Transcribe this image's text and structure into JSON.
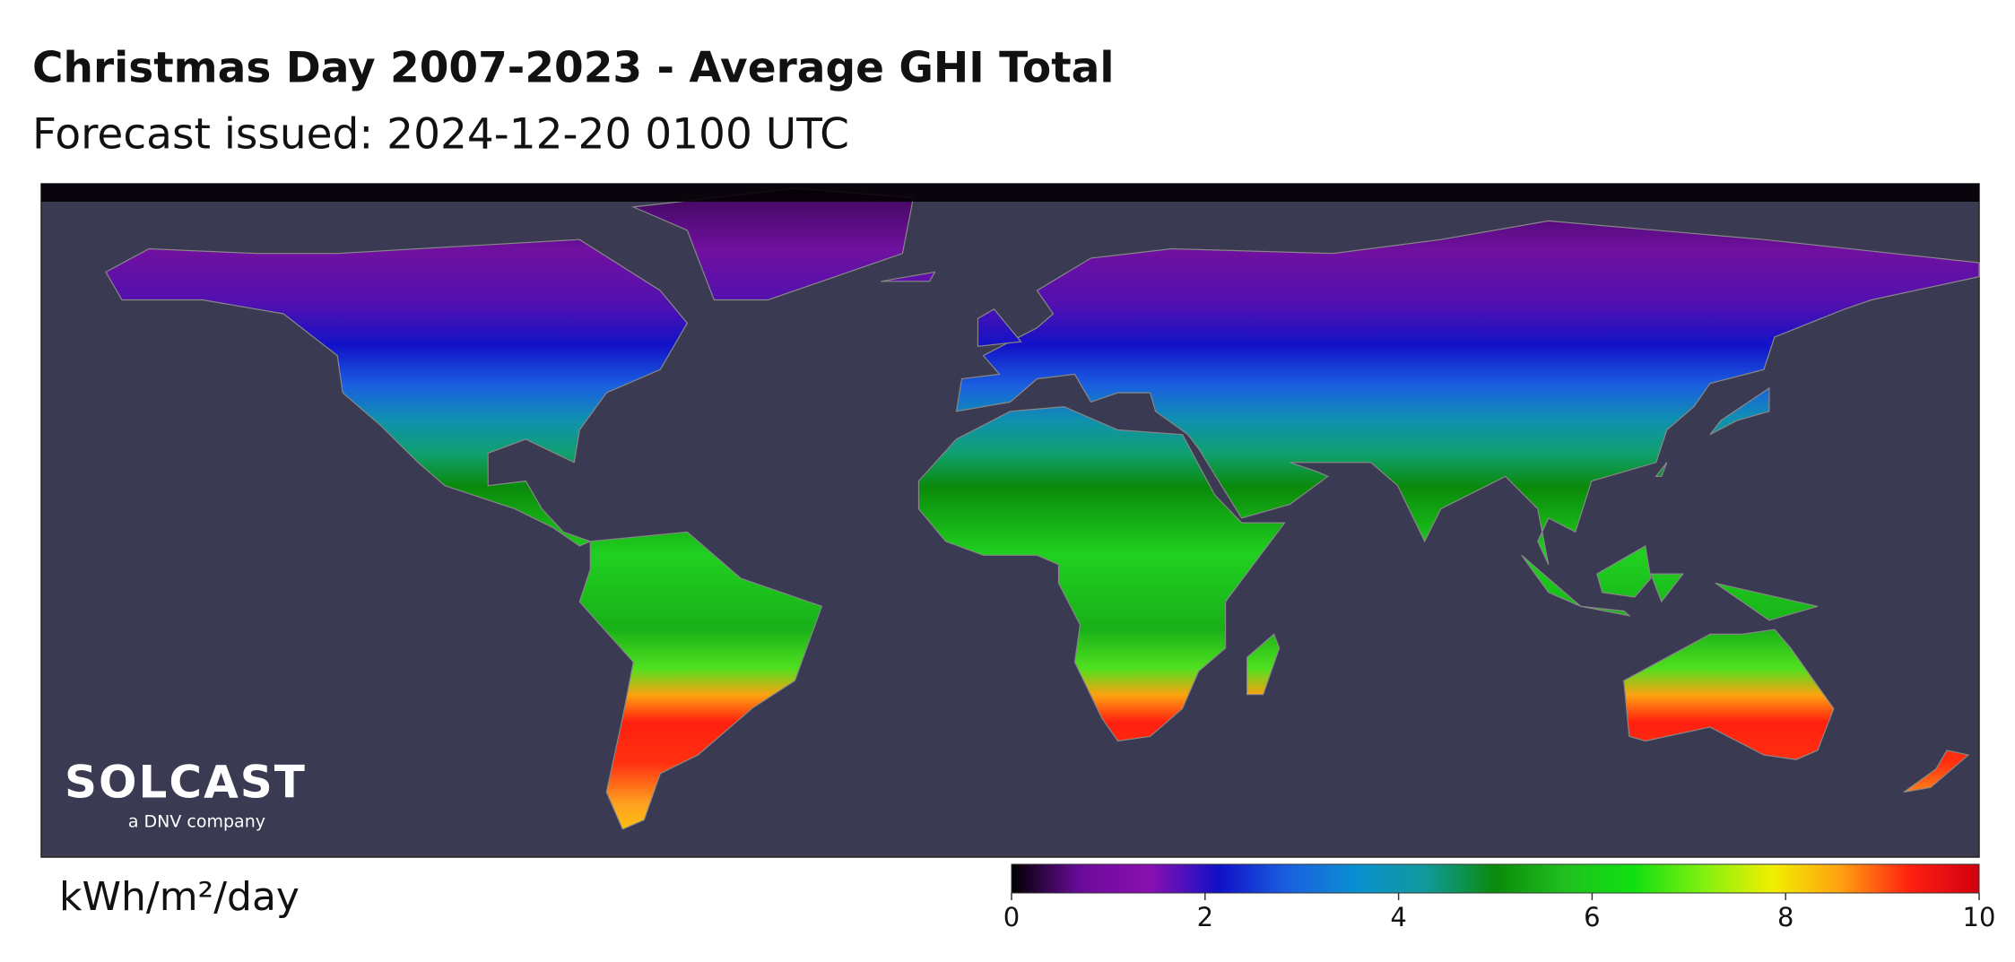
{
  "header": {
    "title": "Christmas Day 2007-2023 - Average GHI Total",
    "subtitle": "Forecast issued: 2024-12-20 0100 UTC"
  },
  "logo": {
    "name": "SOLCAST",
    "tagline": "a DNV company"
  },
  "colorbar": {
    "label": "kWh/m²/day",
    "range": [
      0,
      10
    ],
    "ticks": [
      0,
      2,
      4,
      6,
      8,
      10
    ],
    "colors": [
      "#000000",
      "#6a0a9a",
      "#8a10b0",
      "#1010c8",
      "#1a60e0",
      "#0a90d0",
      "#109a9a",
      "#0a8a0a",
      "#20c020",
      "#10e010",
      "#80f010",
      "#f0f000",
      "#ffa010",
      "#ff2010",
      "#d00010"
    ]
  }
}
